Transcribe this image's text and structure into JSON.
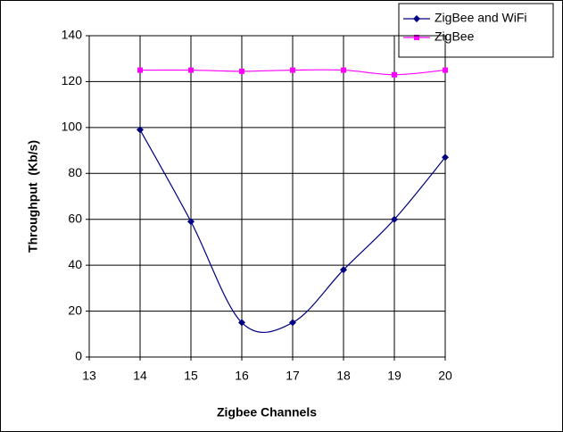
{
  "chart_data": {
    "type": "line",
    "x": [
      14,
      15,
      16,
      17,
      18,
      19,
      20
    ],
    "series": [
      {
        "name": "ZigBee and WiFi",
        "color": "#000080",
        "marker": "diamond",
        "values": [
          99,
          59,
          15,
          15,
          38,
          60,
          87
        ]
      },
      {
        "name": "ZigBee",
        "color": "#ff00ff",
        "marker": "square",
        "values": [
          125,
          125,
          124.5,
          125,
          125,
          123,
          125
        ]
      }
    ],
    "xlabel": "Zigbee Channels",
    "ylabel": "Throughput  (Kb/s)",
    "xlim": [
      13,
      20
    ],
    "xticks": [
      13,
      14,
      15,
      16,
      17,
      18,
      19,
      20
    ],
    "ylim": [
      0,
      140
    ],
    "yticks": [
      0,
      20,
      40,
      60,
      80,
      100,
      120,
      140
    ],
    "grid": true,
    "smooth": true,
    "legend": "top-right"
  }
}
